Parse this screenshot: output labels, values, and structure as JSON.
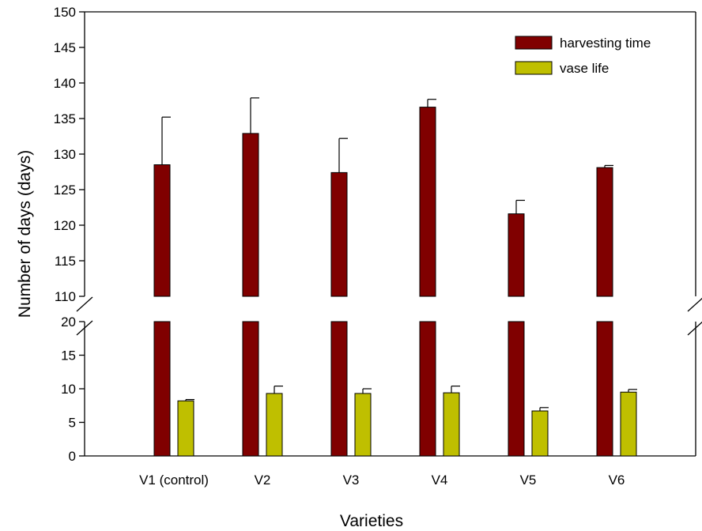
{
  "chart_data": {
    "type": "bar",
    "categories": [
      "V1 (control)",
      "V2",
      "V3",
      "V4",
      "V5",
      "V6"
    ],
    "series": [
      {
        "name": "harvesting time",
        "color": "#800000",
        "values": [
          128.5,
          132.9,
          127.4,
          136.6,
          121.6,
          128.1
        ],
        "error": [
          6.7,
          5.0,
          4.8,
          1.1,
          1.9,
          0.3
        ]
      },
      {
        "name": "vase life",
        "color": "#BFBF00",
        "values": [
          8.2,
          9.3,
          9.3,
          9.4,
          6.7,
          9.5
        ],
        "error": [
          0.2,
          1.1,
          0.7,
          1.0,
          0.5,
          0.4
        ]
      }
    ],
    "xlabel": "Varieties",
    "ylabel": "Number of days (days)",
    "y_upper_segment": {
      "range": [
        110,
        150
      ],
      "ticks": [
        110,
        115,
        120,
        125,
        130,
        135,
        140,
        145,
        150
      ]
    },
    "y_lower_segment": {
      "range": [
        0,
        20
      ],
      "ticks": [
        0,
        5,
        10,
        15,
        20
      ]
    },
    "axis_break": "between 20 and 110",
    "legend_position": "top-right",
    "grid": false
  }
}
